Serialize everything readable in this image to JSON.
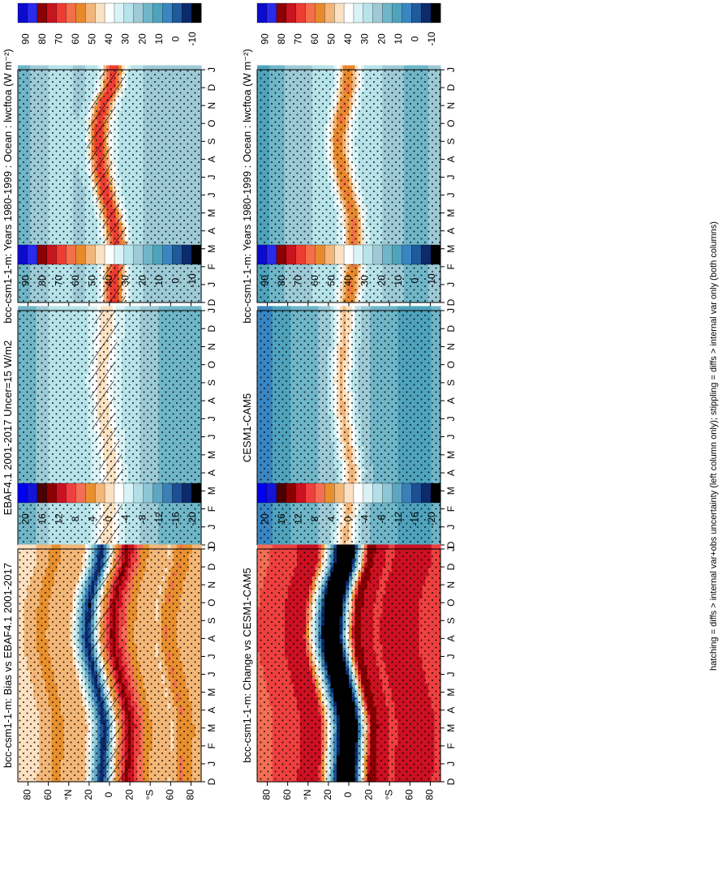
{
  "figure": {
    "footnote": "hatching = diffs > internal var+obs uncertainty (left column only); stippling = diffs > internal var only (both columns)"
  },
  "palettes": {
    "abs": [
      "#0b0bcf",
      "#2a2aeb",
      "#8b0000",
      "#c8141e",
      "#ee3c32",
      "#f46e4a",
      "#e8892d",
      "#f3b57a",
      "#fbe2c2",
      "#ffffff",
      "#d9f3f6",
      "#b7e3ea",
      "#9dcad6",
      "#6fb6c8",
      "#4fa3bd",
      "#3a86c2",
      "#1f5a9c",
      "#0d2b6b",
      "#000000"
    ],
    "diff": [
      "#0000ee",
      "#1414d6",
      "#4a0000",
      "#8b0000",
      "#cc1122",
      "#ef4040",
      "#f46e55",
      "#e8902e",
      "#f3b778",
      "#fde1c2",
      "#ffffff",
      "#d8f2f5",
      "#b3e0e8",
      "#8ec6d6",
      "#5ea6c2",
      "#3a80b6",
      "#1d4f95",
      "#0d2b6b",
      "#000000"
    ]
  },
  "chart_data": [
    {
      "type": "heatmap",
      "panel": "top-left",
      "title": "bcc-csm1-1-m: Years 1980-1999 : Ocean : lwcftoa (W m⁻²)",
      "months": [
        "D",
        "J",
        "F",
        "M",
        "A",
        "M",
        "J",
        "J",
        "A",
        "S",
        "O",
        "N",
        "D",
        "J"
      ],
      "lat_ticks": [
        "80",
        "60",
        "°N",
        "20",
        "0",
        "20",
        "°S",
        "60",
        "80"
      ],
      "colorbar": {
        "labels": [
          "90",
          "80",
          "70",
          "60",
          "50",
          "40",
          "30",
          "20",
          "10",
          "0",
          "-10"
        ],
        "range": [
          -10,
          95
        ]
      },
      "hatching": true,
      "stippling": true,
      "itcz_lat_by_month": [
        -4,
        -4,
        -6,
        -7,
        -5,
        -1,
        4,
        8,
        10,
        11,
        10,
        6,
        -2,
        -4
      ],
      "itcz_max": 72,
      "background_levels": [
        {
          "lat": 82,
          "value": 22
        },
        {
          "lat": 55,
          "value": 30
        },
        {
          "lat": 25,
          "value": 28
        },
        {
          "lat": 0,
          "value": 35
        },
        {
          "lat": -25,
          "value": 30
        },
        {
          "lat": -45,
          "value": 26
        },
        {
          "lat": -65,
          "value": 24
        },
        {
          "lat": -82,
          "value": 28
        }
      ]
    },
    {
      "type": "heatmap",
      "panel": "top-right",
      "title": "bcc-csm1-1-m: Years 1980-1999 : Ocean : lwcftoa (W m⁻²)",
      "months": [
        "D",
        "J",
        "F",
        "M",
        "A",
        "M",
        "J",
        "J",
        "A",
        "S",
        "O",
        "N",
        "D",
        "J"
      ],
      "lat_ticks": [
        "80",
        "60",
        "°N",
        "20",
        "0",
        "20",
        "°S",
        "60",
        "80"
      ],
      "colorbar": {
        "labels": [
          "90",
          "80",
          "70",
          "60",
          "50",
          "40",
          "30",
          "20",
          "10",
          "0",
          "-10"
        ],
        "range": [
          -10,
          95
        ]
      },
      "hatching": false,
      "stippling": true,
      "itcz_lat_by_month": [
        0,
        -2,
        -4,
        -5,
        -5,
        -3,
        2,
        6,
        9,
        10,
        8,
        4,
        1,
        0
      ],
      "itcz_max": 62,
      "background_levels": [
        {
          "lat": 82,
          "value": 16
        },
        {
          "lat": 55,
          "value": 26
        },
        {
          "lat": 25,
          "value": 30
        },
        {
          "lat": 0,
          "value": 34
        },
        {
          "lat": -25,
          "value": 30
        },
        {
          "lat": -45,
          "value": 26
        },
        {
          "lat": -65,
          "value": 20
        },
        {
          "lat": -82,
          "value": 24
        }
      ]
    },
    {
      "type": "heatmap",
      "panel": "middle-left",
      "title": "EBAF4.1 2001-2017 Uncer=15 W/m2",
      "months": [
        "D",
        "J",
        "F",
        "M",
        "A",
        "M",
        "J",
        "J",
        "A",
        "S",
        "O",
        "N",
        "D",
        "J"
      ],
      "lat_ticks": [
        "80",
        "60",
        "°N",
        "20",
        "0",
        "20",
        "°S",
        "60",
        "80"
      ],
      "colorbar": {
        "labels": [
          "90",
          "80",
          "70",
          "60",
          "50",
          "40",
          "30",
          "20",
          "10",
          "0",
          "-10"
        ],
        "range": [
          -10,
          95
        ]
      },
      "hatching": true,
      "stippling": true,
      "itcz_lat_by_month": [
        3,
        2,
        0,
        -2,
        -2,
        0,
        3,
        6,
        7,
        8,
        7,
        5,
        3,
        3
      ],
      "itcz_max": 48,
      "background_levels": [
        {
          "lat": 82,
          "value": 20
        },
        {
          "lat": 55,
          "value": 30
        },
        {
          "lat": 25,
          "value": 32
        },
        {
          "lat": 0,
          "value": 38
        },
        {
          "lat": -25,
          "value": 30
        },
        {
          "lat": -45,
          "value": 24
        },
        {
          "lat": -65,
          "value": 20
        },
        {
          "lat": -82,
          "value": 22
        }
      ]
    },
    {
      "type": "heatmap",
      "panel": "middle-right",
      "title": "CESM1-CAM5",
      "months": [
        "D",
        "J",
        "F",
        "M",
        "A",
        "M",
        "J",
        "J",
        "A",
        "S",
        "O",
        "N",
        "D",
        "J"
      ],
      "lat_ticks": [
        "80",
        "60",
        "°N",
        "20",
        "0",
        "20",
        "°S",
        "60",
        "80"
      ],
      "colorbar": {
        "labels": [
          "90",
          "80",
          "70",
          "60",
          "50",
          "40",
          "30",
          "20",
          "10",
          "0",
          "-10"
        ],
        "range": [
          -10,
          95
        ]
      },
      "hatching": false,
      "stippling": true,
      "itcz_lat_by_month": [
        4,
        2,
        0,
        -2,
        -3,
        0,
        3,
        5,
        7,
        8,
        7,
        5,
        4,
        4
      ],
      "itcz_max": 52,
      "background_levels": [
        {
          "lat": 82,
          "value": 10
        },
        {
          "lat": 55,
          "value": 18
        },
        {
          "lat": 25,
          "value": 24
        },
        {
          "lat": 0,
          "value": 30
        },
        {
          "lat": -25,
          "value": 22
        },
        {
          "lat": -45,
          "value": 18
        },
        {
          "lat": -65,
          "value": 14
        },
        {
          "lat": -82,
          "value": 18
        }
      ]
    },
    {
      "type": "heatmap",
      "panel": "bottom-left",
      "title": "bcc-csm1-1-m: Bias vs EBAF4.1 2001-2017",
      "months": [
        "D",
        "J",
        "F",
        "M",
        "A",
        "M",
        "J",
        "J",
        "A",
        "S",
        "O",
        "N",
        "D",
        "J"
      ],
      "lat_ticks": [
        "80",
        "60",
        "°N",
        "20",
        "0",
        "20",
        "°S",
        "60",
        "80"
      ],
      "colorbar": {
        "labels": [
          "20",
          "16",
          "12",
          "8",
          "4",
          "0",
          "-4",
          "-8",
          "-12",
          "-16",
          "-20"
        ],
        "range": [
          -22,
          22
        ]
      },
      "hatching": true,
      "stippling": true,
      "itcz_lat_by_month": [
        -6,
        -7,
        -8,
        -9,
        -6,
        -1,
        4,
        9,
        12,
        11,
        9,
        4,
        -3,
        -6
      ],
      "background_levels": [
        {
          "lat": 82,
          "value": 0
        },
        {
          "lat": 60,
          "value": 4
        },
        {
          "lat": 30,
          "value": 2
        },
        {
          "lat": 12,
          "value": -20
        },
        {
          "lat": 0,
          "value": 2
        },
        {
          "lat": -12,
          "value": 14
        },
        {
          "lat": -30,
          "value": 4
        },
        {
          "lat": -55,
          "value": 1
        },
        {
          "lat": -65,
          "value": 6
        },
        {
          "lat": -82,
          "value": 2
        }
      ]
    },
    {
      "type": "heatmap",
      "panel": "bottom-right",
      "title": "bcc-csm1-1-m: Change vs CESM1-CAM5",
      "months": [
        "D",
        "J",
        "F",
        "M",
        "A",
        "M",
        "J",
        "J",
        "A",
        "S",
        "O",
        "N",
        "D",
        "J"
      ],
      "lat_ticks": [
        "80",
        "60",
        "°N",
        "20",
        "0",
        "20",
        "°S",
        "60",
        "80"
      ],
      "colorbar": {
        "labels": [
          "20",
          "16",
          "12",
          "8",
          "4",
          "0",
          "-4",
          "-8",
          "-12",
          "-16",
          "-20"
        ],
        "range": [
          -22,
          22
        ]
      },
      "hatching": false,
      "stippling": true,
      "itcz_lat_by_month": [
        -6,
        -7,
        -8,
        -9,
        -6,
        -1,
        4,
        9,
        12,
        11,
        9,
        4,
        -3,
        -6
      ],
      "background_levels": [
        {
          "lat": 82,
          "value": 8
        },
        {
          "lat": 60,
          "value": 10
        },
        {
          "lat": 35,
          "value": 12
        },
        {
          "lat": 15,
          "value": -22
        },
        {
          "lat": 0,
          "value": -22
        },
        {
          "lat": -15,
          "value": 14
        },
        {
          "lat": -35,
          "value": 10
        },
        {
          "lat": -60,
          "value": 12
        },
        {
          "lat": -82,
          "value": 10
        }
      ]
    }
  ]
}
